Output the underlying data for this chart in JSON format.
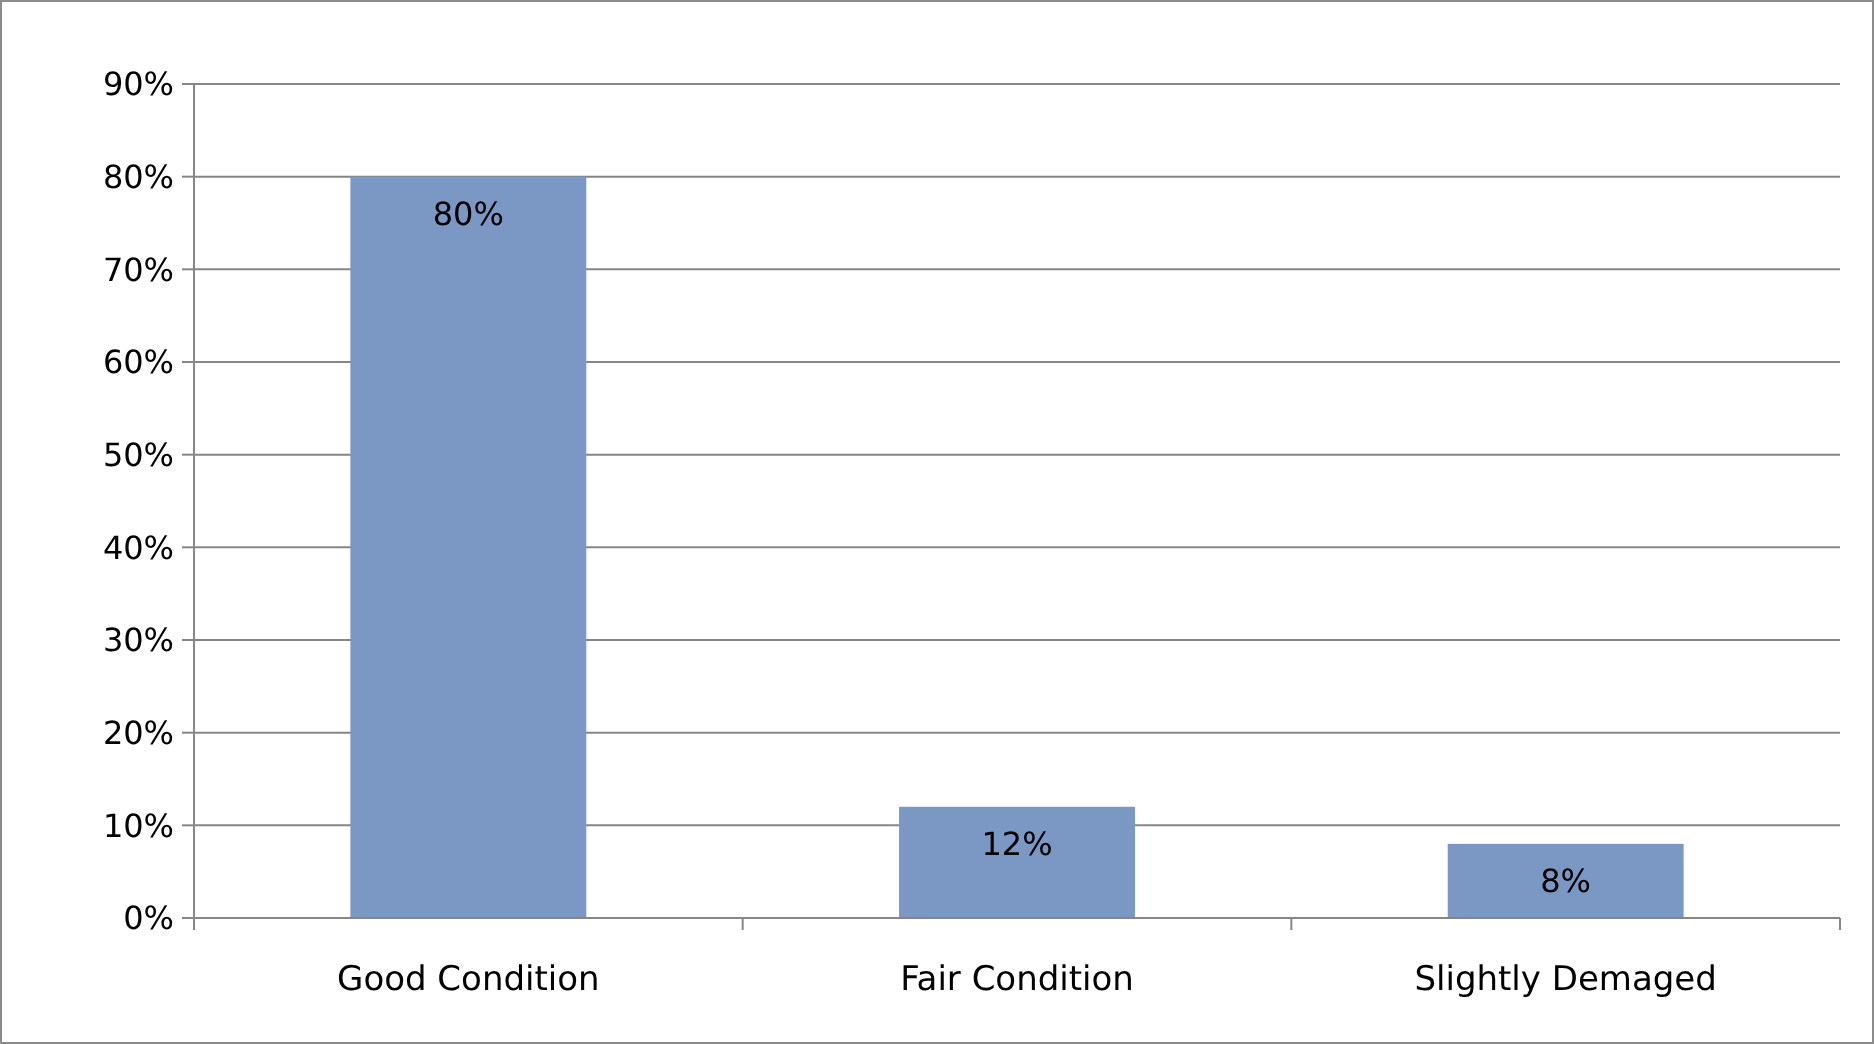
{
  "chart_data": {
    "type": "bar",
    "categories": [
      "Good Condition",
      "Fair Condition",
      "Slightly Demaged"
    ],
    "values": [
      80,
      12,
      8
    ],
    "color": "#7b97c4",
    "value_labels": [
      "80%",
      "12%",
      "8%"
    ],
    "ylim": [
      0,
      90
    ],
    "yticks": [
      {
        "value": 0,
        "label": "0%"
      },
      {
        "value": 10,
        "label": "10%"
      },
      {
        "value": 20,
        "label": "20%"
      },
      {
        "value": 30,
        "label": "30%"
      },
      {
        "value": 40,
        "label": "40%"
      },
      {
        "value": 50,
        "label": "50%"
      },
      {
        "value": 60,
        "label": "60%"
      },
      {
        "value": 70,
        "label": "70%"
      },
      {
        "value": 80,
        "label": "80%"
      },
      {
        "value": 90,
        "label": "90%"
      }
    ],
    "grid": "y"
  }
}
